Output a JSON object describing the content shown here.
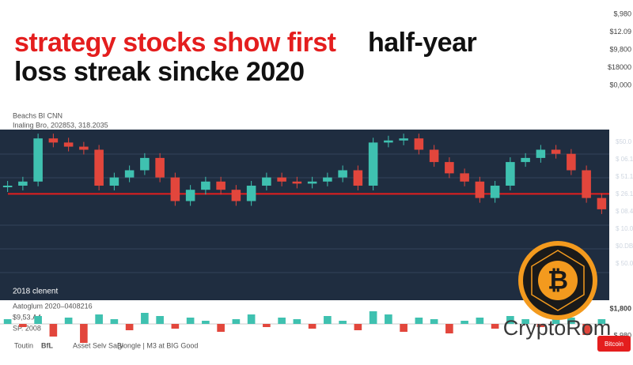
{
  "headline": {
    "red": "strategy stocks show  first",
    "black": "half-year",
    "line2": "loss streak sincke 2020"
  },
  "right_axis_top": [
    "$,980",
    "$12.09",
    "$9,800",
    "$18000",
    "$0,000"
  ],
  "panel": {
    "label1": "Beachs BI CNN",
    "label2": "Inaling  Bro, 202853, 318.2035",
    "footer": "2018 clenent",
    "right_labels": [
      "$50.0",
      "$ 06.1",
      "$ 51.1",
      "$ 26.1",
      "$ 08.4",
      "$ 10.0",
      "$0.DBL4",
      "$ 50.0"
    ]
  },
  "chart": {
    "ylim": [
      0,
      100
    ],
    "level": 42,
    "up_color": "#3fc1b0",
    "down_color": "#e2463c",
    "closes": [
      50,
      54,
      96,
      92,
      88,
      85,
      50,
      58,
      65,
      77,
      58,
      35,
      46,
      54,
      46,
      35,
      50,
      58,
      54,
      52,
      54,
      58,
      65,
      50,
      92,
      94,
      96,
      85,
      73,
      62,
      54,
      38,
      50,
      73,
      77,
      85,
      81,
      65,
      38,
      27
    ],
    "volumes": [
      3,
      -2,
      5,
      -8,
      4,
      -12,
      6,
      3,
      -4,
      7,
      5,
      -3,
      4,
      2,
      -5,
      3,
      6,
      -2,
      4,
      3,
      -3,
      5,
      2,
      -4,
      8,
      6,
      -5,
      4,
      3,
      -6,
      2,
      4,
      -3,
      5,
      3,
      -2,
      6,
      4,
      -7,
      3
    ]
  },
  "volume_panel": {
    "label1": "Aatoglum 2020–0408216",
    "label2": "$9,53.A4",
    "label3": "SP. 2008",
    "right_label": "$1,800",
    "right_label2": "$,980"
  },
  "brand": "CryptoRom",
  "button": "Bitcoin",
  "footer": [
    "Toutin",
    "BfL",
    "Asset Selv Sa(y",
    "Blongle | M3 at BIG Good"
  ]
}
